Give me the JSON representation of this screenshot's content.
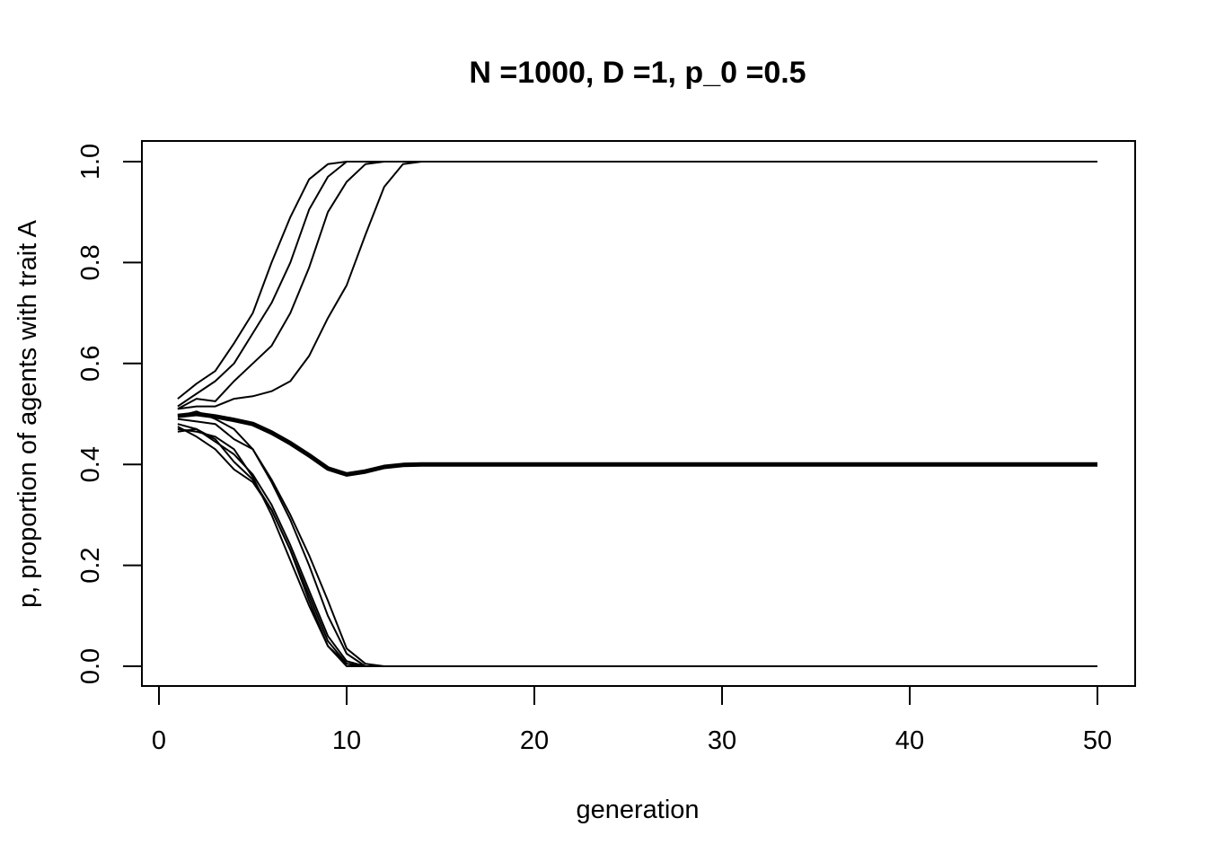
{
  "chart_data": {
    "type": "line",
    "title": "N =1000, D =1, p_0 =0.5",
    "xlabel": "generation",
    "ylabel": "p, proportion of agents with trait A",
    "xlim": [
      0,
      50
    ],
    "ylim": [
      0,
      1
    ],
    "xticks": [
      "0",
      "10",
      "20",
      "30",
      "40",
      "50"
    ],
    "yticks": [
      "0.0",
      "0.2",
      "0.4",
      "0.6",
      "0.8",
      "1.0"
    ],
    "grid": false,
    "legend": "none",
    "line_color": "#000000",
    "runs": [
      {
        "values": [
          0.53,
          0.56,
          0.585,
          0.64,
          0.7,
          0.8,
          0.89,
          0.965,
          0.995,
          1.0,
          1.0
        ]
      },
      {
        "values": [
          0.515,
          0.54,
          0.565,
          0.6,
          0.66,
          0.72,
          0.8,
          0.905,
          0.97,
          1.0,
          1.0
        ]
      },
      {
        "values": [
          0.51,
          0.53,
          0.525,
          0.565,
          0.6,
          0.635,
          0.7,
          0.79,
          0.9,
          0.96,
          0.995,
          1.0
        ]
      },
      {
        "values": [
          0.51,
          0.515,
          0.515,
          0.53,
          0.535,
          0.545,
          0.565,
          0.615,
          0.69,
          0.755,
          0.855,
          0.95,
          0.995,
          1.0
        ]
      },
      {
        "values": [
          0.495,
          0.505,
          0.49,
          0.47,
          0.43,
          0.37,
          0.3,
          0.22,
          0.13,
          0.035,
          0.005,
          0.0
        ]
      },
      {
        "values": [
          0.49,
          0.485,
          0.48,
          0.45,
          0.43,
          0.365,
          0.29,
          0.2,
          0.1,
          0.025,
          0.0
        ]
      },
      {
        "values": [
          0.48,
          0.47,
          0.445,
          0.42,
          0.38,
          0.32,
          0.24,
          0.15,
          0.06,
          0.01,
          0.0
        ]
      },
      {
        "values": [
          0.475,
          0.455,
          0.43,
          0.39,
          0.365,
          0.31,
          0.23,
          0.14,
          0.05,
          0.005,
          0.0
        ]
      },
      {
        "values": [
          0.465,
          0.47,
          0.45,
          0.405,
          0.37,
          0.31,
          0.23,
          0.13,
          0.04,
          0.005,
          0.0
        ]
      },
      {
        "values": [
          0.47,
          0.465,
          0.455,
          0.43,
          0.375,
          0.3,
          0.21,
          0.12,
          0.04,
          0.0,
          0.0
        ]
      }
    ],
    "mean": {
      "values": [
        0.496,
        0.5,
        0.495,
        0.488,
        0.48,
        0.463,
        0.442,
        0.418,
        0.392,
        0.38,
        0.386,
        0.395,
        0.399,
        0.4,
        0.4
      ]
    }
  }
}
